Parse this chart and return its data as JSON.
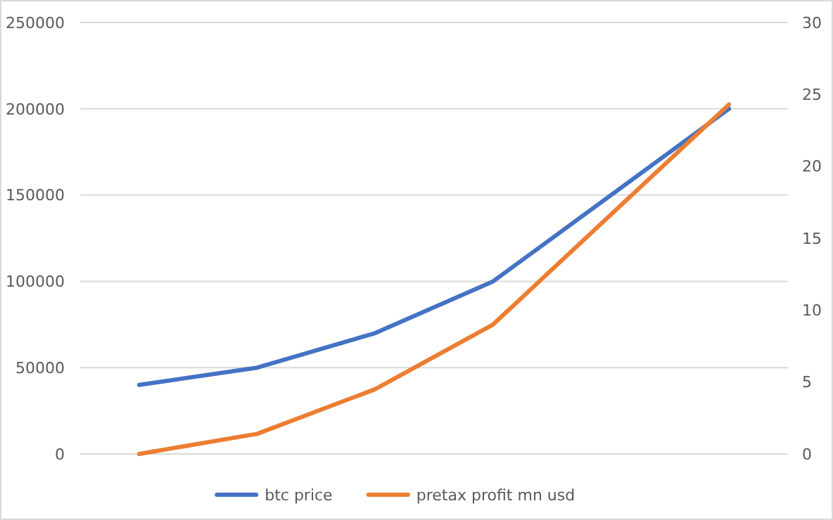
{
  "chart_data": {
    "type": "line",
    "categories": [
      null,
      null,
      null,
      null,
      null,
      null
    ],
    "series": [
      {
        "name": "btc price",
        "color": "#4472c4",
        "values": [
          40000,
          50000,
          70000,
          100000,
          null,
          200000
        ]
      },
      {
        "name": "pretax profit mn usd",
        "color": "#ed7d31",
        "axis": "y2",
        "values": [
          0,
          1.4,
          4.5,
          9,
          null,
          24.3
        ]
      }
    ],
    "ylim": [
      0,
      250000
    ],
    "yticks": [
      0,
      50000,
      100000,
      150000,
      200000,
      250000
    ],
    "y2lim": [
      0,
      30
    ],
    "y2ticks": [
      0,
      5,
      10,
      15,
      20,
      25,
      30
    ],
    "grid": "y",
    "legend": "bottom",
    "marker": "none",
    "line_style": "solid"
  }
}
